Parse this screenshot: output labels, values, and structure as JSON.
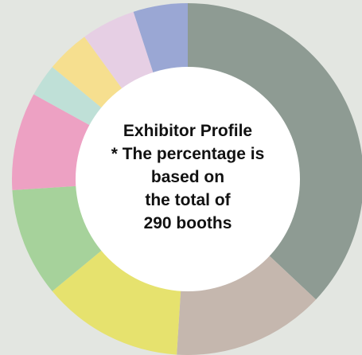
{
  "chart_data": {
    "type": "pie",
    "center_text": [
      "Exhibitor Profile",
      "* The percentage is",
      "based on",
      "the total of",
      "290 booths"
    ],
    "slices": [
      {
        "value": 37,
        "color": "#8e9b93"
      },
      {
        "value": 14,
        "color": "#c5b7ae"
      },
      {
        "value": 13,
        "color": "#e6e26e"
      },
      {
        "value": 10,
        "color": "#a6d29b"
      },
      {
        "value": 9,
        "color": "#eda1c3"
      },
      {
        "value": 3,
        "color": "#bfe0d7"
      },
      {
        "value": 4,
        "color": "#f6df8f"
      },
      {
        "value": 5,
        "color": "#e6cfe4"
      },
      {
        "value": 5,
        "color": "#9aa7d4"
      }
    ]
  }
}
